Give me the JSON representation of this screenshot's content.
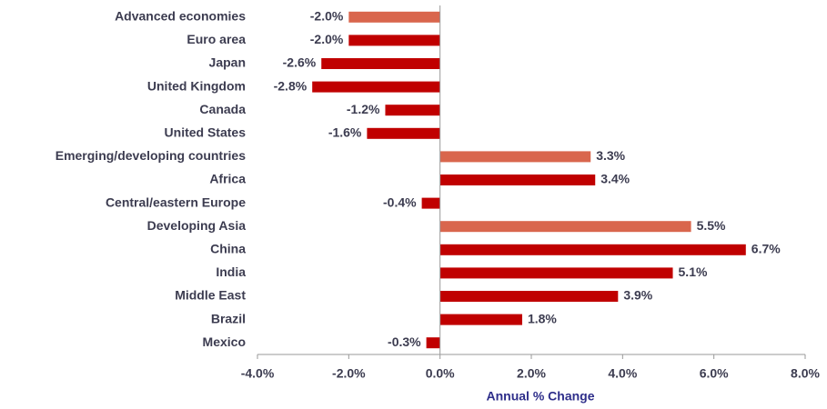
{
  "chart_data": {
    "type": "bar",
    "orientation": "horizontal",
    "xlabel": "Annual % Change",
    "categories": [
      "Advanced economies",
      "Euro area",
      "Japan",
      "United Kingdom",
      "Canada",
      "United States",
      "Emerging/developing countries",
      "Africa",
      "Central/eastern Europe",
      "Developing Asia",
      "China",
      "India",
      "Middle East",
      "Brazil",
      "Mexico"
    ],
    "values": [
      -2.0,
      -2.0,
      -2.6,
      -2.8,
      -1.2,
      -1.6,
      3.3,
      3.4,
      -0.4,
      5.5,
      6.7,
      5.1,
      3.9,
      1.8,
      -0.3
    ],
    "value_labels": [
      "-2.0%",
      "-2.0%",
      "-2.6%",
      "-2.8%",
      "-1.2%",
      "-1.6%",
      "3.3%",
      "3.4%",
      "-0.4%",
      "5.5%",
      "6.7%",
      "5.1%",
      "3.9%",
      "1.8%",
      "-0.3%"
    ],
    "colors": [
      "#d9664d",
      "#c00000",
      "#c00000",
      "#c00000",
      "#c00000",
      "#c00000",
      "#d9664d",
      "#c00000",
      "#c00000",
      "#d9664d",
      "#c00000",
      "#c00000",
      "#c00000",
      "#c00000",
      "#c00000"
    ],
    "xlim": [
      -4,
      8
    ],
    "xticks": [
      {
        "value": -4,
        "label": "-4.0%"
      },
      {
        "value": -2,
        "label": "-2.0%"
      },
      {
        "value": 0,
        "label": "0.0%"
      },
      {
        "value": 2,
        "label": "2.0%"
      },
      {
        "value": 4,
        "label": "4.0%"
      },
      {
        "value": 6,
        "label": "6.0%"
      },
      {
        "value": 8,
        "label": "8.0%"
      }
    ],
    "grid": false
  }
}
